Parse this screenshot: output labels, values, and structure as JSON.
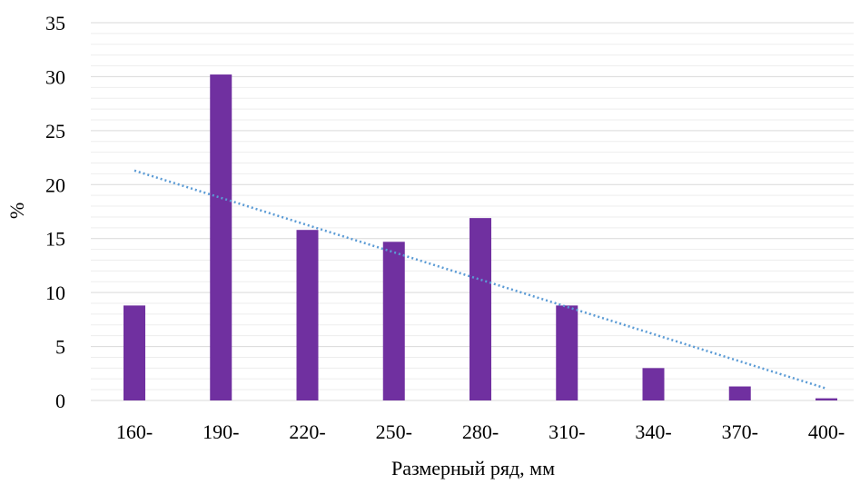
{
  "chart_data": {
    "type": "bar",
    "categories": [
      "160-",
      "190-",
      "220-",
      "250-",
      "280-",
      "310-",
      "340-",
      "370-",
      "400-"
    ],
    "values": [
      8.8,
      30.2,
      15.8,
      14.7,
      16.9,
      8.8,
      3.0,
      1.3,
      0.2
    ],
    "trendline": {
      "type": "linear",
      "start": 21.3,
      "end": 1.1,
      "style": "dotted"
    },
    "xlabel": "Размерный ряд, мм",
    "ylabel": "%",
    "ylim": [
      0,
      35
    ],
    "yticks": [
      0,
      5,
      10,
      15,
      20,
      25,
      30,
      35
    ],
    "grid": true,
    "legend": "none",
    "colors": {
      "bar": "#7030A0",
      "trendline": "#5B9BD5",
      "major_grid": "#D9D9D9",
      "minor_grid": "#EDEDED"
    }
  }
}
